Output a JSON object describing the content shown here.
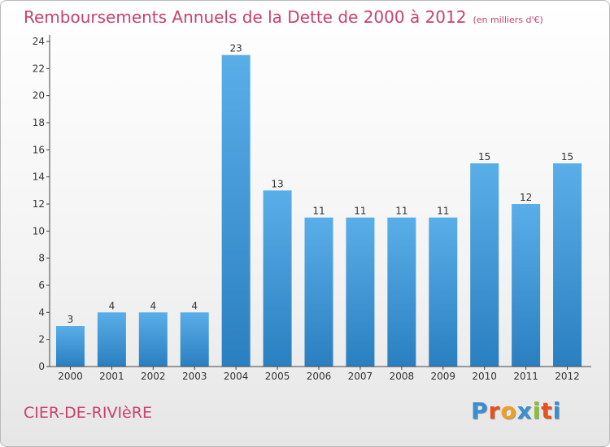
{
  "chart_data": {
    "type": "bar",
    "title": "Remboursements Annuels de la Dette de 2000 à 2012",
    "unit_note": "(en milliers d'€)",
    "categories": [
      "2000",
      "2001",
      "2002",
      "2003",
      "2004",
      "2005",
      "2006",
      "2007",
      "2008",
      "2009",
      "2010",
      "2011",
      "2012"
    ],
    "values": [
      3,
      4,
      4,
      4,
      23,
      13,
      11,
      11,
      11,
      11,
      15,
      12,
      15
    ],
    "ylim": [
      0,
      24
    ],
    "yticks": [
      "0",
      "2",
      "4",
      "6",
      "8",
      "10",
      "12",
      "14",
      "16",
      "18",
      "20",
      "22",
      "24"
    ],
    "xlabel": "",
    "ylabel": "",
    "grid": false,
    "colors": {
      "bar_top": "#5aaee8",
      "bar_bottom": "#2a7fc0"
    }
  },
  "footer": {
    "commune": "CIER-DE-RIVIèRE",
    "logo": [
      "P",
      "r",
      "o",
      "x",
      "i",
      "t",
      "i"
    ],
    "logo_colors": [
      "#3a8ed0",
      "#e8501e",
      "#f0a020",
      "#3a8ed0",
      "#8ac030",
      "#e8501e",
      "#3a8ed0"
    ]
  }
}
